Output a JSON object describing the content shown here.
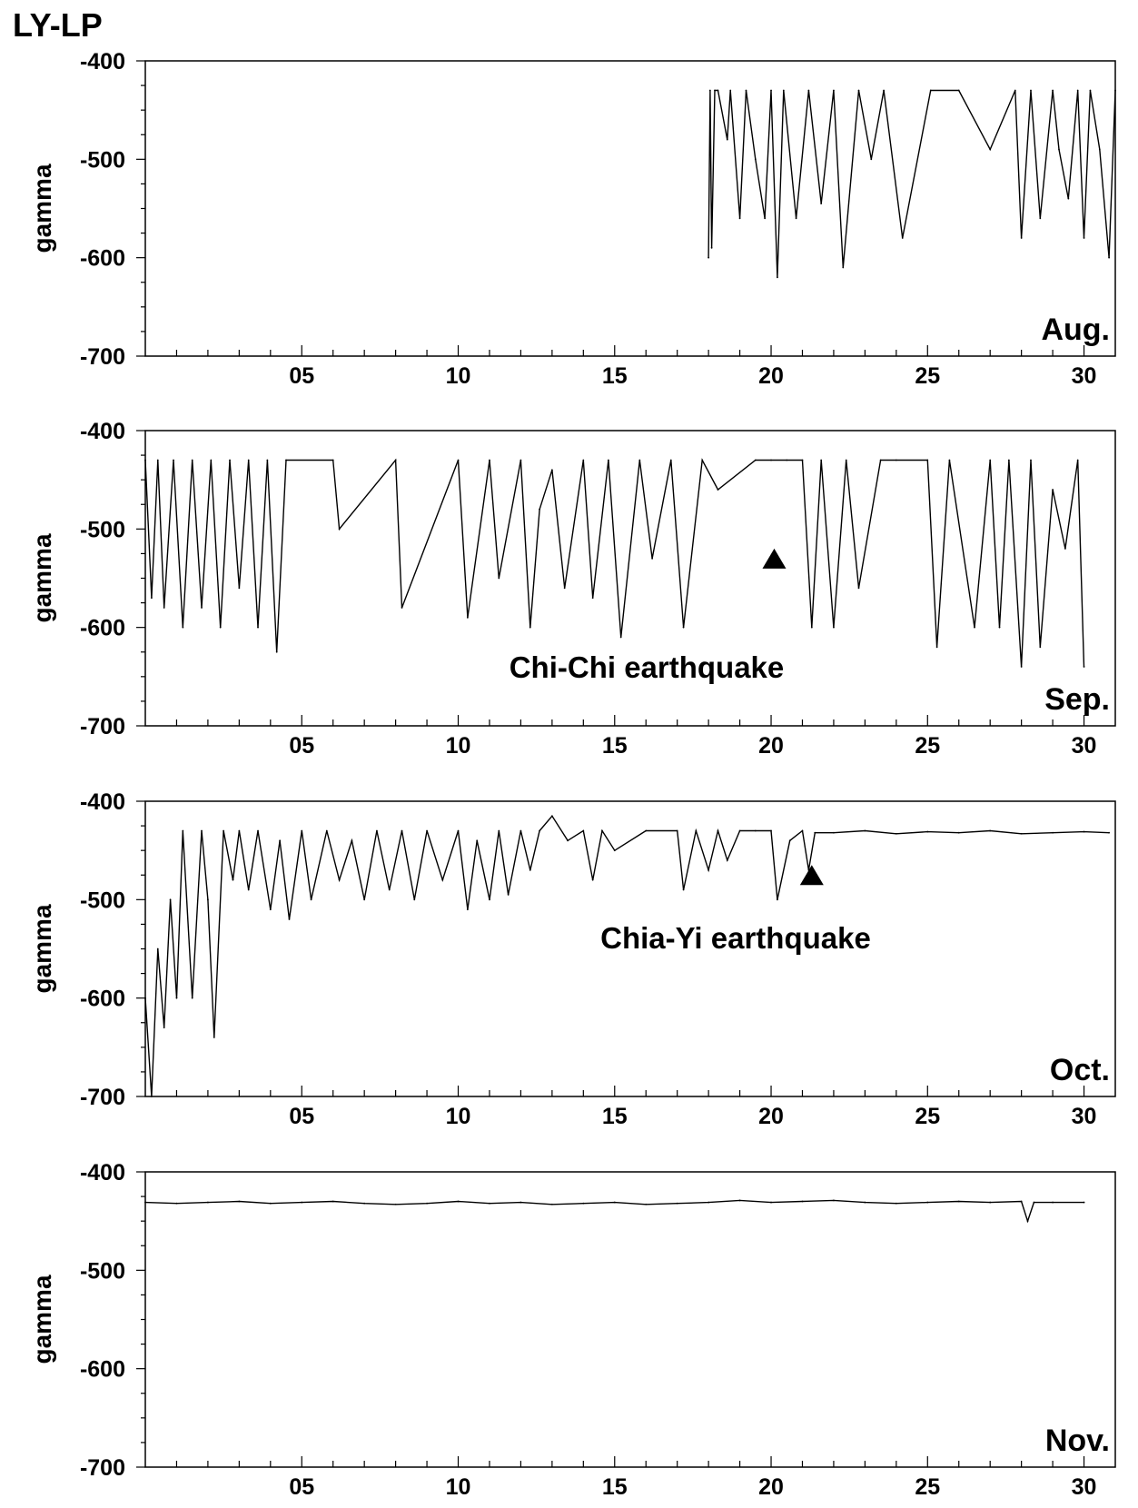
{
  "figure_title": "LY-LP",
  "chart_data": [
    {
      "type": "line",
      "ylabel": "gamma",
      "ylim": [
        -700,
        -400
      ],
      "yticks": [
        -400,
        -500,
        -600,
        -700
      ],
      "xlim": [
        0,
        31
      ],
      "xticks": [
        "05",
        "10",
        "15",
        "20",
        "25",
        "30"
      ],
      "month_label": "Aug.",
      "baseline": -430,
      "series": [
        {
          "x": [
            18,
            18.05,
            18.1,
            18.2,
            18.3,
            18.6,
            18.7,
            19.0,
            19.2,
            19.5,
            19.8,
            20.0,
            20.2,
            20.4,
            20.8,
            21.2,
            21.6,
            22.0,
            22.3,
            22.8,
            23.2,
            23.6,
            24.2,
            25.1,
            26.0,
            27.0,
            27.8,
            28.0,
            28.3,
            28.6,
            29.0,
            29.2,
            29.5,
            29.8,
            30.0,
            30.2,
            30.5,
            30.8,
            31.0
          ],
          "y": [
            -600,
            -430,
            -590,
            -430,
            -430,
            -480,
            -430,
            -560,
            -430,
            -500,
            -560,
            -430,
            -620,
            -430,
            -560,
            -430,
            -545,
            -430,
            -610,
            -430,
            -500,
            -430,
            -580,
            -430,
            -430,
            -490,
            -430,
            -580,
            -430,
            -560,
            -430,
            -490,
            -540,
            -430,
            -580,
            -430,
            -490,
            -600,
            -430
          ]
        }
      ],
      "markers": [],
      "annotation": ""
    },
    {
      "type": "line",
      "ylabel": "gamma",
      "ylim": [
        -700,
        -400
      ],
      "yticks": [
        -400,
        -500,
        -600,
        -700
      ],
      "xlim": [
        0,
        31
      ],
      "xticks": [
        "05",
        "10",
        "15",
        "20",
        "25",
        "30"
      ],
      "month_label": "Sep.",
      "baseline": -430,
      "series": [
        {
          "x": [
            0.0,
            0.2,
            0.4,
            0.6,
            0.9,
            1.2,
            1.5,
            1.8,
            2.1,
            2.4,
            2.7,
            3.0,
            3.3,
            3.6,
            3.9,
            4.2,
            4.5,
            6.0,
            6.2,
            8.0,
            8.2,
            10.0,
            10.3,
            11.0,
            11.3,
            12.0,
            12.3,
            12.6,
            13.0,
            13.4,
            14.0,
            14.3,
            14.8,
            15.2,
            15.8,
            16.2,
            16.8,
            17.2,
            17.8,
            18.3,
            19.5,
            20.0,
            20.5,
            21.0,
            21.3,
            21.6,
            22.0,
            22.4,
            22.8,
            23.5,
            24.0,
            25.0,
            25.3,
            25.7,
            26.5,
            27.0,
            27.3,
            27.6,
            28.0,
            28.3,
            28.6,
            29.0,
            29.4,
            29.8,
            30.0
          ],
          "y": [
            -430,
            -570,
            -430,
            -580,
            -430,
            -600,
            -430,
            -580,
            -430,
            -600,
            -430,
            -560,
            -430,
            -600,
            -430,
            -625,
            -430,
            -430,
            -500,
            -430,
            -580,
            -430,
            -590,
            -430,
            -550,
            -430,
            -600,
            -480,
            -440,
            -560,
            -430,
            -570,
            -430,
            -610,
            -430,
            -530,
            -430,
            -600,
            -430,
            -460,
            -430,
            -430,
            -430,
            -430,
            -600,
            -430,
            -600,
            -430,
            -560,
            -430,
            -430,
            -430,
            -620,
            -430,
            -600,
            -430,
            -600,
            -430,
            -640,
            -430,
            -620,
            -460,
            -520,
            -430,
            -640
          ]
        }
      ],
      "markers": [
        {
          "x": 20.1,
          "y": -530
        }
      ],
      "annotation": "Chi-Chi earthquake"
    },
    {
      "type": "line",
      "ylabel": "gamma",
      "ylim": [
        -700,
        -400
      ],
      "yticks": [
        -400,
        -500,
        -600,
        -700
      ],
      "xlim": [
        0,
        31
      ],
      "xticks": [
        "05",
        "10",
        "15",
        "20",
        "25",
        "30"
      ],
      "month_label": "Oct.",
      "baseline": -432,
      "series": [
        {
          "x": [
            0.0,
            0.2,
            0.4,
            0.6,
            0.8,
            1.0,
            1.2,
            1.5,
            1.8,
            2.0,
            2.2,
            2.5,
            2.8,
            3.0,
            3.3,
            3.6,
            4.0,
            4.3,
            4.6,
            5.0,
            5.3,
            5.8,
            6.2,
            6.6,
            7.0,
            7.4,
            7.8,
            8.2,
            8.6,
            9.0,
            9.5,
            10.0,
            10.3,
            10.6,
            11.0,
            11.3,
            11.6,
            12.0,
            12.3,
            12.6,
            13.0,
            13.5,
            14.0,
            14.3,
            14.6,
            15.0,
            16.0,
            17.0,
            17.2,
            17.6,
            18.0,
            18.3,
            18.6,
            19.0,
            19.5,
            20.0,
            20.2,
            20.6,
            21.0,
            21.2,
            21.4,
            22.0,
            23.0,
            24.0,
            25.0,
            26.0,
            27.0,
            28.0,
            29.0,
            30.0,
            30.8
          ],
          "y": [
            -600,
            -700,
            -550,
            -630,
            -500,
            -600,
            -430,
            -600,
            -430,
            -500,
            -640,
            -430,
            -480,
            -430,
            -490,
            -430,
            -510,
            -440,
            -520,
            -430,
            -500,
            -430,
            -480,
            -440,
            -500,
            -430,
            -490,
            -430,
            -500,
            -430,
            -480,
            -430,
            -510,
            -440,
            -500,
            -430,
            -495,
            -430,
            -470,
            -430,
            -415,
            -440,
            -430,
            -480,
            -430,
            -450,
            -430,
            -430,
            -490,
            -430,
            -470,
            -430,
            -460,
            -430,
            -430,
            -430,
            -500,
            -440,
            -430,
            -470,
            -432,
            -432,
            -430,
            -433,
            -431,
            -432,
            -430,
            -433,
            -432,
            -431,
            -432
          ]
        }
      ],
      "markers": [
        {
          "x": 21.3,
          "y": -475
        }
      ],
      "annotation": "Chia-Yi earthquake"
    },
    {
      "type": "line",
      "ylabel": "gamma",
      "ylim": [
        -700,
        -400
      ],
      "yticks": [
        -400,
        -500,
        -600,
        -700
      ],
      "xlim": [
        0,
        31
      ],
      "xticks": [
        "05",
        "10",
        "15",
        "20",
        "25",
        "30"
      ],
      "month_label": "Nov.",
      "baseline": -431,
      "series": [
        {
          "x": [
            0,
            1,
            2,
            3,
            4,
            5,
            6,
            7,
            8,
            9,
            10,
            11,
            12,
            13,
            14,
            15,
            16,
            17,
            18,
            19,
            20,
            21,
            22,
            23,
            24,
            25,
            26,
            27,
            28,
            28.2,
            28.4,
            29,
            30
          ],
          "y": [
            -431,
            -432,
            -431,
            -430,
            -432,
            -431,
            -430,
            -432,
            -433,
            -432,
            -430,
            -432,
            -431,
            -433,
            -432,
            -431,
            -433,
            -432,
            -431,
            -429,
            -431,
            -430,
            -429,
            -431,
            -432,
            -431,
            -430,
            -431,
            -430,
            -450,
            -431,
            -431,
            -431
          ]
        }
      ],
      "markers": [],
      "annotation": ""
    }
  ]
}
